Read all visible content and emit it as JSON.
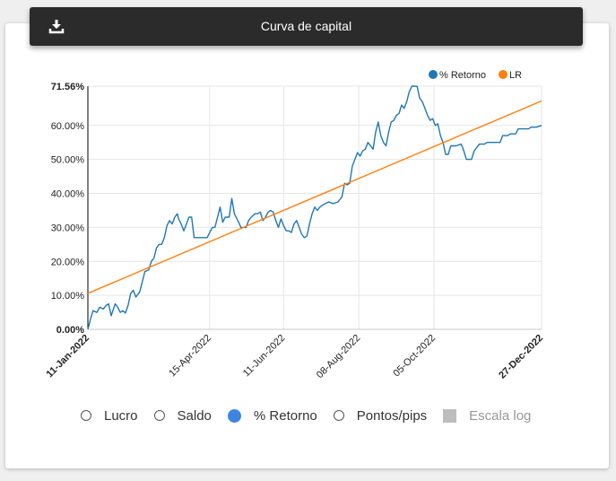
{
  "header": {
    "title": "Curva de capital",
    "download_icon": "download-icon"
  },
  "controls": [
    {
      "label": "Lucro",
      "selected": false,
      "kind": "radio"
    },
    {
      "label": "Saldo",
      "selected": false,
      "kind": "radio"
    },
    {
      "label": "% Retorno",
      "selected": true,
      "kind": "radio"
    },
    {
      "label": "Pontos/pips",
      "selected": false,
      "kind": "radio"
    },
    {
      "label": "Escala log",
      "selected": false,
      "kind": "checkbox",
      "disabled": true
    }
  ],
  "chart_data": {
    "type": "line",
    "ylim": [
      0,
      71.56
    ],
    "y_ticks": [
      "0.00%",
      "10.00%",
      "20.00%",
      "30.00%",
      "40.00%",
      "50.00%",
      "60.00%",
      "71.56%"
    ],
    "y_tick_values": [
      0,
      10,
      20,
      30,
      40,
      50,
      60,
      71.56
    ],
    "x_ticks": [
      "11-Jan-2022",
      "15-Apr-2022",
      "11-Jun-2022",
      "08-Aug-2022",
      "05-Oct-2022",
      "27-Dec-2022"
    ],
    "x_tick_values": [
      0,
      94,
      151,
      209,
      267,
      350
    ],
    "x_bold_ticks": [
      "11-Jan-2022",
      "27-Dec-2022"
    ],
    "xlim": [
      0,
      350
    ],
    "grid": true,
    "legend_position": "top-right",
    "series": [
      {
        "name": "% Retorno",
        "color": "#1f77b4",
        "points": [
          [
            0,
            0
          ],
          [
            2,
            3
          ],
          [
            4,
            5.5
          ],
          [
            7,
            5
          ],
          [
            9,
            6.5
          ],
          [
            12,
            6
          ],
          [
            14,
            7
          ],
          [
            16,
            7.5
          ],
          [
            18,
            4
          ],
          [
            21,
            7.5
          ],
          [
            23,
            6.5
          ],
          [
            25,
            5
          ],
          [
            27,
            5.5
          ],
          [
            29,
            4.8
          ],
          [
            31,
            7
          ],
          [
            33,
            10.5
          ],
          [
            35,
            11.5
          ],
          [
            37,
            9.5
          ],
          [
            40,
            11
          ],
          [
            42,
            14
          ],
          [
            44,
            17
          ],
          [
            47,
            17.5
          ],
          [
            49,
            20
          ],
          [
            51,
            21
          ],
          [
            53,
            24
          ],
          [
            55,
            25
          ],
          [
            57,
            25
          ],
          [
            59,
            27
          ],
          [
            61,
            30.5
          ],
          [
            63,
            32
          ],
          [
            65,
            31
          ],
          [
            67,
            33
          ],
          [
            69,
            34
          ],
          [
            70,
            32.5
          ],
          [
            72,
            31
          ],
          [
            74,
            29
          ],
          [
            76,
            31
          ],
          [
            78,
            33
          ],
          [
            80,
            33
          ],
          [
            82,
            27
          ],
          [
            86,
            27
          ],
          [
            92,
            27
          ],
          [
            94,
            28.5
          ],
          [
            96,
            30
          ],
          [
            98,
            30
          ],
          [
            100,
            33
          ],
          [
            102,
            36
          ],
          [
            104,
            31.5
          ],
          [
            106,
            33
          ],
          [
            109,
            33
          ],
          [
            111,
            38.5
          ],
          [
            113,
            34
          ],
          [
            115,
            32.5
          ],
          [
            117,
            31
          ],
          [
            118,
            30
          ],
          [
            122,
            30
          ],
          [
            124,
            32
          ],
          [
            126,
            33
          ],
          [
            129,
            34
          ],
          [
            131,
            34
          ],
          [
            133,
            34.5
          ],
          [
            135,
            32
          ],
          [
            137,
            33
          ],
          [
            139,
            34.5
          ],
          [
            141,
            35
          ],
          [
            143,
            34.5
          ],
          [
            145,
            32
          ],
          [
            147,
            30
          ],
          [
            149,
            32.5
          ],
          [
            151,
            30.5
          ],
          [
            153,
            29
          ],
          [
            155,
            29
          ],
          [
            157,
            28.5
          ],
          [
            159,
            31
          ],
          [
            161,
            32
          ],
          [
            163,
            30
          ],
          [
            165,
            28
          ],
          [
            167,
            27
          ],
          [
            169,
            27.5
          ],
          [
            171,
            31
          ],
          [
            173,
            34
          ],
          [
            175,
            36
          ],
          [
            177,
            35
          ],
          [
            179,
            36
          ],
          [
            181,
            36.5
          ],
          [
            183,
            37
          ],
          [
            186,
            37.5
          ],
          [
            189,
            37
          ],
          [
            193,
            37.5
          ],
          [
            196,
            39
          ],
          [
            198,
            43
          ],
          [
            200,
            42.5
          ],
          [
            202,
            43
          ],
          [
            204,
            48
          ],
          [
            206,
            50
          ],
          [
            208,
            52
          ],
          [
            210,
            51
          ],
          [
            212,
            52.5
          ],
          [
            214,
            53
          ],
          [
            216,
            55
          ],
          [
            218,
            54
          ],
          [
            220,
            53
          ],
          [
            222,
            58
          ],
          [
            224,
            61
          ],
          [
            226,
            57
          ],
          [
            228,
            55
          ],
          [
            230,
            54
          ],
          [
            232,
            58
          ],
          [
            234,
            61
          ],
          [
            236,
            61.5
          ],
          [
            238,
            63
          ],
          [
            240,
            63.5
          ],
          [
            242,
            66
          ],
          [
            244,
            65
          ],
          [
            246,
            67
          ],
          [
            248,
            70
          ],
          [
            250,
            71.56
          ],
          [
            254,
            71.5
          ],
          [
            256,
            68
          ],
          [
            258,
            67
          ],
          [
            260,
            65
          ],
          [
            262,
            63
          ],
          [
            264,
            61.5
          ],
          [
            266,
            62
          ],
          [
            268,
            60
          ],
          [
            270,
            60.5
          ],
          [
            272,
            57
          ],
          [
            274,
            55
          ],
          [
            276,
            51.5
          ],
          [
            278,
            51.5
          ],
          [
            280,
            54
          ],
          [
            284,
            54
          ],
          [
            288,
            54.5
          ],
          [
            290,
            52.5
          ],
          [
            292,
            50
          ],
          [
            296,
            50
          ],
          [
            298,
            52.5
          ],
          [
            302,
            54.5
          ],
          [
            306,
            54.5
          ],
          [
            308,
            55
          ],
          [
            318,
            55
          ],
          [
            320,
            57
          ],
          [
            324,
            57
          ],
          [
            326,
            57.5
          ],
          [
            330,
            57.5
          ],
          [
            332,
            59
          ],
          [
            340,
            59
          ],
          [
            342,
            59.5
          ],
          [
            346,
            59.5
          ],
          [
            350,
            60
          ]
        ]
      },
      {
        "name": "LR",
        "color": "#ff7f0e",
        "points": [
          [
            0,
            10.6
          ],
          [
            350,
            67.2
          ]
        ]
      }
    ]
  }
}
